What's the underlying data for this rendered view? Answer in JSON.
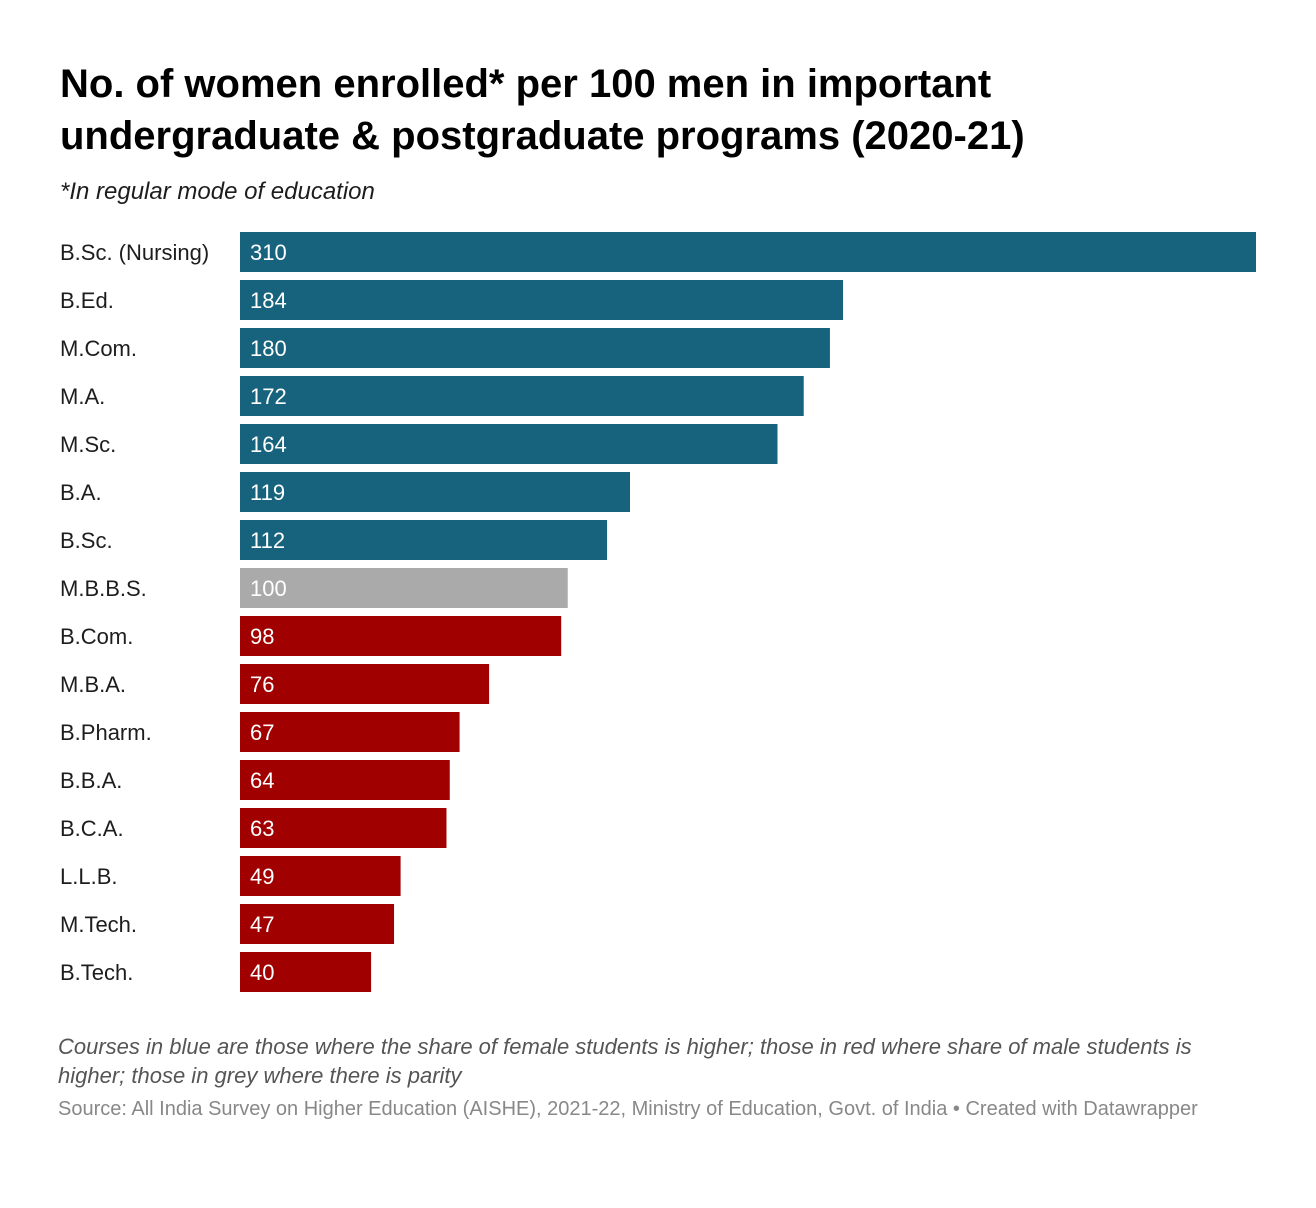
{
  "header": {
    "title": "No. of women enrolled* per 100 men in important undergraduate & postgraduate programs (2020-21)",
    "subtitle": "*In regular mode of education"
  },
  "footer": {
    "notes": "Courses in blue are those where the share of female students is higher; those in red where share of male students is higher; those in grey where there is parity",
    "source": "Source: All India Survey on Higher Education (AISHE), 2021-22, Ministry of Education, Govt. of India • Created with Datawrapper"
  },
  "colors": {
    "female_higher": "#17637d",
    "parity": "#aaaaaa",
    "male_higher": "#a00000"
  },
  "chart_data": {
    "type": "bar",
    "orientation": "horizontal",
    "categories": [
      "B.Sc. (Nursing)",
      "B.Ed.",
      "M.Com.",
      "M.A.",
      "M.Sc.",
      "B.A.",
      "B.Sc.",
      "M.B.B.S.",
      "B.Com.",
      "M.B.A.",
      "B.Pharm.",
      "B.B.A.",
      "B.C.A.",
      "L.L.B.",
      "M.Tech.",
      "B.Tech."
    ],
    "values": [
      310,
      184,
      180,
      172,
      164,
      119,
      112,
      100,
      98,
      76,
      67,
      64,
      63,
      49,
      47,
      40
    ],
    "groups": [
      "female_higher",
      "female_higher",
      "female_higher",
      "female_higher",
      "female_higher",
      "female_higher",
      "female_higher",
      "parity",
      "male_higher",
      "male_higher",
      "male_higher",
      "male_higher",
      "male_higher",
      "male_higher",
      "male_higher",
      "male_higher"
    ],
    "xlim": [
      0,
      310
    ],
    "grid": false,
    "legend": "none",
    "data_labels": "inside-left"
  }
}
